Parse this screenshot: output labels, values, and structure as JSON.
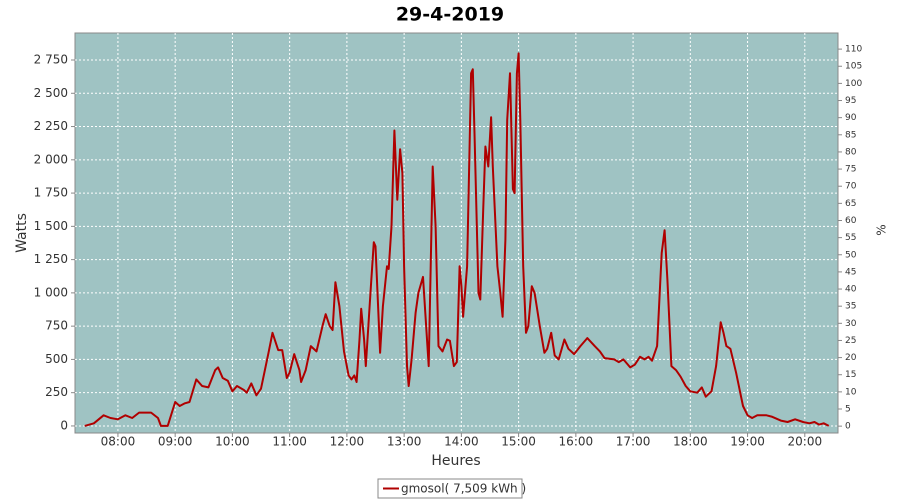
{
  "chart_data": {
    "type": "line",
    "title": "29-4-2019",
    "x_label": "Heures",
    "y_label": "Watts",
    "y2_label": "%",
    "x": [
      7.42,
      7.58,
      7.75,
      7.87,
      8,
      8.13,
      8.25,
      8.37,
      8.58,
      8.7,
      8.75,
      8.87,
      9,
      9.08,
      9.17,
      9.25,
      9.37,
      9.47,
      9.58,
      9.7,
      9.75,
      9.83,
      9.92,
      10,
      10.08,
      10.2,
      10.25,
      10.33,
      10.42,
      10.5,
      10.63,
      10.7,
      10.8,
      10.87,
      10.95,
      11,
      11.08,
      11.17,
      11.2,
      11.28,
      11.37,
      11.47,
      11.58,
      11.63,
      11.7,
      11.75,
      11.8,
      11.87,
      11.95,
      12.03,
      12.08,
      12.13,
      12.17,
      12.22,
      12.25,
      12.3,
      12.33,
      12.42,
      12.47,
      12.5,
      12.58,
      12.63,
      12.7,
      12.73,
      12.78,
      12.83,
      12.88,
      12.93,
      12.97,
      13,
      13.05,
      13.08,
      13.13,
      13.2,
      13.25,
      13.33,
      13.37,
      13.43,
      13.5,
      13.55,
      13.6,
      13.67,
      13.75,
      13.8,
      13.87,
      13.92,
      13.97,
      14,
      14.03,
      14.1,
      14.17,
      14.2,
      14.23,
      14.3,
      14.33,
      14.38,
      14.42,
      14.47,
      14.52,
      14.55,
      14.63,
      14.68,
      14.72,
      14.77,
      14.8,
      14.85,
      14.9,
      14.93,
      14.97,
      15,
      15.03,
      15.08,
      15.13,
      15.17,
      15.23,
      15.28,
      15.37,
      15.45,
      15.5,
      15.57,
      15.63,
      15.7,
      15.8,
      15.87,
      15.97,
      16.08,
      16.2,
      16.33,
      16.42,
      16.5,
      16.67,
      16.75,
      16.83,
      16.95,
      17.03,
      17.12,
      17.2,
      17.27,
      17.33,
      17.42,
      17.5,
      17.55,
      17.6,
      17.67,
      17.75,
      17.83,
      17.92,
      18,
      18.12,
      18.2,
      18.27,
      18.37,
      18.45,
      18.53,
      18.58,
      18.63,
      18.7,
      18.8,
      18.92,
      19,
      19.08,
      19.17,
      19.33,
      19.42,
      19.58,
      19.7,
      19.83,
      19.97,
      20.08,
      20.17,
      20.25,
      20.33,
      20.42
    ],
    "series": [
      {
        "name": "gmosol( 7,509 kWh )",
        "color": "#b00000",
        "values": [
          0,
          20,
          80,
          60,
          50,
          80,
          60,
          100,
          100,
          60,
          0,
          0,
          180,
          150,
          170,
          180,
          350,
          300,
          290,
          420,
          440,
          360,
          340,
          260,
          300,
          270,
          250,
          320,
          230,
          280,
          550,
          700,
          570,
          570,
          360,
          400,
          540,
          420,
          330,
          420,
          600,
          560,
          760,
          840,
          750,
          720,
          1080,
          900,
          560,
          380,
          350,
          380,
          330,
          650,
          880,
          650,
          450,
          1050,
          1380,
          1350,
          550,
          900,
          1200,
          1180,
          1500,
          2220,
          1700,
          2080,
          1900,
          1200,
          450,
          300,
          500,
          850,
          1000,
          1120,
          850,
          450,
          1950,
          1500,
          600,
          560,
          650,
          640,
          450,
          480,
          1200,
          1050,
          820,
          1200,
          2650,
          2680,
          2200,
          1000,
          950,
          1600,
          2100,
          1950,
          2320,
          1950,
          1200,
          1000,
          820,
          1400,
          2300,
          2650,
          1780,
          1750,
          2650,
          2800,
          2300,
          1200,
          700,
          750,
          1050,
          1000,
          750,
          550,
          580,
          700,
          530,
          500,
          650,
          580,
          540,
          600,
          660,
          600,
          560,
          510,
          500,
          480,
          500,
          440,
          460,
          520,
          500,
          520,
          490,
          600,
          1300,
          1470,
          1100,
          450,
          420,
          370,
          300,
          260,
          250,
          290,
          220,
          260,
          450,
          780,
          700,
          600,
          580,
          400,
          150,
          80,
          60,
          80,
          80,
          70,
          40,
          30,
          50,
          30,
          20,
          30,
          10,
          20,
          0
        ]
      }
    ],
    "xlim": [
      7.25,
      20.58
    ],
    "xticks": [
      {
        "value": 8,
        "label": "08:00"
      },
      {
        "value": 9,
        "label": "09:00"
      },
      {
        "value": 10,
        "label": "10:00"
      },
      {
        "value": 11,
        "label": "11:00"
      },
      {
        "value": 12,
        "label": "12:00"
      },
      {
        "value": 13,
        "label": "13:00"
      },
      {
        "value": 14,
        "label": "14:00"
      },
      {
        "value": 15,
        "label": "15:00"
      },
      {
        "value": 16,
        "label": "16:00"
      },
      {
        "value": 17,
        "label": "17:00"
      },
      {
        "value": 18,
        "label": "18:00"
      },
      {
        "value": 19,
        "label": "19:00"
      },
      {
        "value": 20,
        "label": "20:00"
      }
    ],
    "ylim": [
      -53,
      2953
    ],
    "yticks": [
      0,
      250,
      500,
      750,
      {
        "value": 1000,
        "label": "1 000"
      },
      {
        "value": 1250,
        "label": "1 250"
      },
      {
        "value": 1500,
        "label": "1 500"
      },
      {
        "value": 1750,
        "label": "1 750"
      },
      {
        "value": 2000,
        "label": "2 000"
      },
      {
        "value": 2250,
        "label": "2 250"
      },
      {
        "value": 2500,
        "label": "2 500"
      },
      {
        "value": 2750,
        "label": "2 750"
      }
    ],
    "y2lim": [
      -2,
      114.7
    ],
    "y2ticks": [
      0,
      5,
      10,
      15,
      20,
      25,
      30,
      35,
      40,
      45,
      50,
      55,
      60,
      65,
      70,
      75,
      80,
      85,
      90,
      95,
      100,
      105,
      110
    ],
    "grid": true,
    "plot_background": "#9fc3c3",
    "legend": "bottom"
  }
}
